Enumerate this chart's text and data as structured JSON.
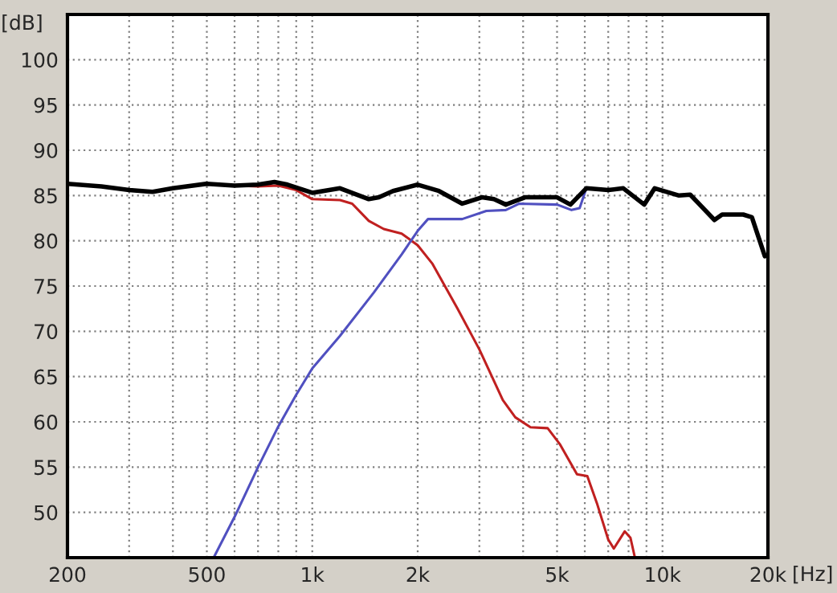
{
  "chart_data": {
    "type": "line",
    "xlabel": "[Hz]",
    "ylabel": "[dB]",
    "log": "x",
    "grid": true,
    "xlim": [
      200,
      20000
    ],
    "ylim": [
      45,
      105
    ],
    "xticks": [
      200,
      {
        "value": 300,
        "label": null
      },
      {
        "value": 400,
        "label": null
      },
      500,
      {
        "value": 600,
        "label": null
      },
      {
        "value": 700,
        "label": null
      },
      {
        "value": 800,
        "label": null
      },
      {
        "value": 900,
        "label": null
      },
      {
        "value": 1000,
        "label": "1k"
      },
      {
        "value": 2000,
        "label": "2k"
      },
      {
        "value": 3000,
        "label": null
      },
      {
        "value": 4000,
        "label": null
      },
      {
        "value": 5000,
        "label": "5k"
      },
      {
        "value": 6000,
        "label": null
      },
      {
        "value": 7000,
        "label": null
      },
      {
        "value": 8000,
        "label": null
      },
      {
        "value": 9000,
        "label": null
      },
      {
        "value": 10000,
        "label": "10k"
      },
      {
        "value": 20000,
        "label": "20k"
      }
    ],
    "yticks": [
      50,
      55,
      60,
      65,
      70,
      75,
      80,
      85,
      90,
      95,
      100
    ],
    "series": [
      {
        "color": "#c02020",
        "x": [
          600,
          700,
          800,
          900,
          1000,
          1200,
          1300,
          1450,
          1600,
          1800,
          2000,
          2200,
          2600,
          3000,
          3500,
          3800,
          4200,
          4700,
          5100,
          5700,
          6100,
          6500,
          7000,
          7260,
          7800,
          8100,
          8320
        ],
        "values": [
          86.1,
          86.0,
          86.1,
          85.6,
          84.6,
          84.5,
          84.1,
          82.2,
          81.3,
          80.8,
          79.5,
          77.5,
          72.5,
          68.0,
          62.4,
          60.5,
          59.4,
          59.3,
          57.5,
          54.2,
          54.0,
          51.0,
          47.0,
          46.0,
          47.9,
          47.2,
          45.2
        ]
      },
      {
        "color": "#5050c0",
        "x": [
          523,
          600,
          700,
          800,
          900,
          1000,
          1200,
          1500,
          1800,
          2000,
          2140,
          2680,
          3140,
          3570,
          3900,
          5000,
          5500,
          5800,
          6060
        ],
        "values": [
          45.0,
          49.5,
          55.0,
          59.5,
          63.0,
          65.9,
          69.5,
          74.3,
          78.5,
          81.1,
          82.4,
          82.4,
          83.3,
          83.4,
          84.1,
          84.0,
          83.4,
          83.6,
          85.8
        ]
      },
      {
        "color": "#000000",
        "x": [
          200,
          250,
          300,
          350,
          400,
          500,
          600,
          700,
          780,
          850,
          1000,
          1200,
          1450,
          1550,
          1700,
          2000,
          2300,
          2680,
          3050,
          3300,
          3570,
          4050,
          5000,
          5460,
          6060,
          7000,
          7730,
          8870,
          9500,
          11150,
          12000,
          14070,
          14800,
          17000,
          18000,
          19600
        ],
        "values": [
          86.3,
          86.0,
          85.6,
          85.4,
          85.8,
          86.3,
          86.1,
          86.2,
          86.5,
          86.2,
          85.3,
          85.8,
          84.6,
          84.8,
          85.5,
          86.2,
          85.5,
          84.1,
          84.8,
          84.6,
          84.0,
          84.8,
          84.8,
          84.0,
          85.8,
          85.6,
          85.8,
          84.0,
          85.8,
          85.0,
          85.1,
          82.3,
          82.9,
          82.9,
          82.6,
          78.3
        ]
      }
    ]
  }
}
